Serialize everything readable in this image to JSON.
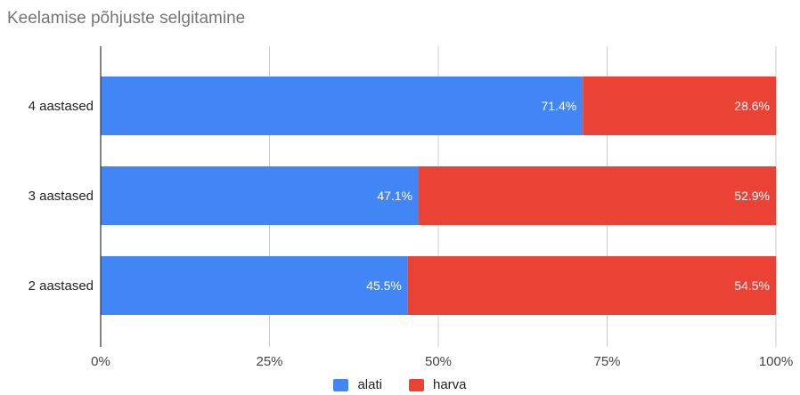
{
  "chart_data": {
    "type": "bar",
    "orientation": "horizontal",
    "stacked": "percent",
    "title": "Keelamise põhjuste selgitamine",
    "categories": [
      "4 aastased",
      "3 aastased",
      "2 aastased"
    ],
    "series": [
      {
        "name": "alati",
        "color": "#4285f4",
        "values": [
          71.4,
          47.1,
          45.5
        ],
        "labels": [
          "71.4%",
          "47.1%",
          "45.5%"
        ]
      },
      {
        "name": "harva",
        "color": "#ea4335",
        "values": [
          28.6,
          52.9,
          54.5
        ],
        "labels": [
          "28.6%",
          "52.9%",
          "54.5%"
        ]
      }
    ],
    "x_ticks": [
      "0%",
      "25%",
      "50%",
      "75%",
      "100%"
    ],
    "xlim": [
      0,
      100
    ],
    "xlabel": "",
    "ylabel": "",
    "grid": true,
    "legend_position": "bottom"
  }
}
